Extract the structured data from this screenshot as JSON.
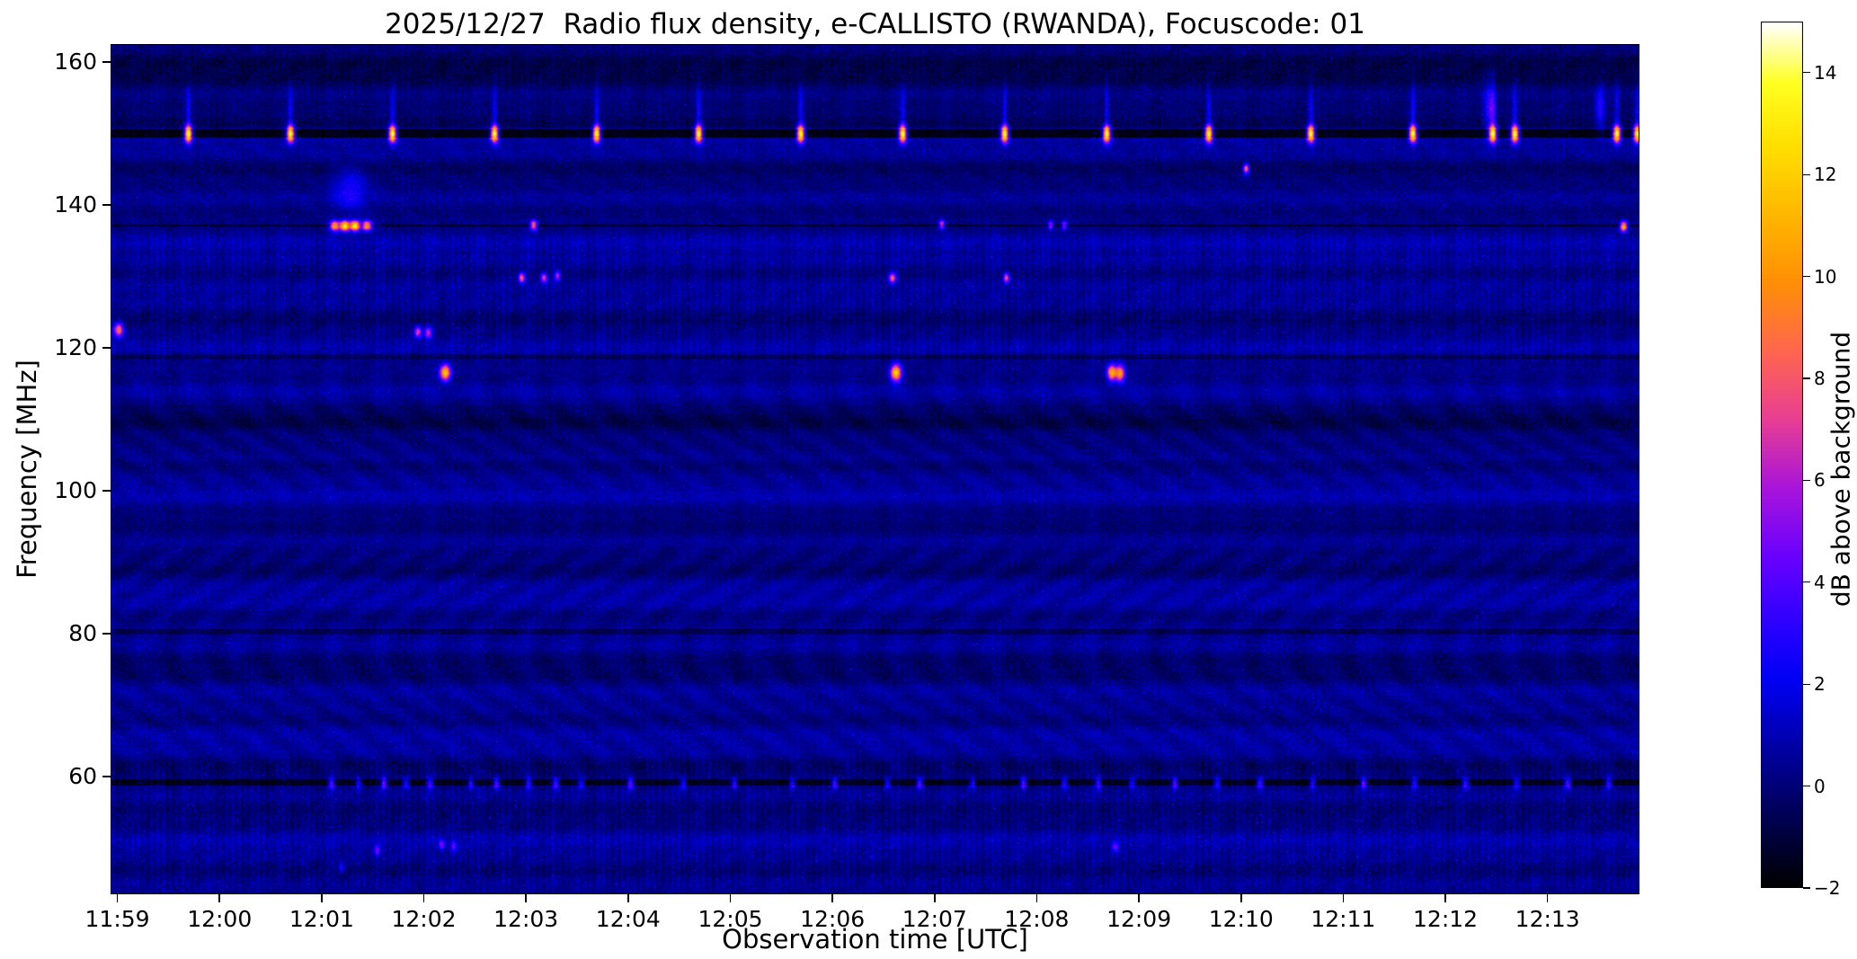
{
  "chart_data": {
    "type": "heatmap",
    "subtype": "radio-spectrogram",
    "title": "2025/12/27  Radio flux density, e-CALLISTO (RWANDA), Focuscode: 01",
    "xlabel": "Observation time [UTC]",
    "ylabel": "Frequency [MHz]",
    "time": {
      "tick_labels": [
        "11:59",
        "12:00",
        "12:01",
        "12:02",
        "12:03",
        "12:04",
        "12:05",
        "12:06",
        "12:07",
        "12:08",
        "12:09",
        "12:10",
        "12:11",
        "12:12",
        "12:13"
      ],
      "first_tick_offset_s": 4,
      "tick_step_s": 60,
      "duration_s": 898
    },
    "freq": {
      "min": 43.5,
      "max": 162.5,
      "tick_values": [
        160,
        140,
        120,
        100,
        80,
        60
      ]
    },
    "colorbar": {
      "label": "dB above background",
      "min": -2,
      "max": 15,
      "tick_values": [
        14,
        12,
        10,
        8,
        6,
        4,
        2,
        0,
        -2
      ],
      "tick_labels": [
        "14",
        "12",
        "10",
        "8",
        "6",
        "4",
        "2",
        "0",
        "−2"
      ]
    },
    "colormap_stops": [
      {
        "t": 0.0,
        "c": "#000000"
      },
      {
        "t": 0.08,
        "c": "#000052"
      },
      {
        "t": 0.16,
        "c": "#0000a3"
      },
      {
        "t": 0.24,
        "c": "#0000f5"
      },
      {
        "t": 0.3,
        "c": "#2800ff"
      },
      {
        "t": 0.38,
        "c": "#6800ff"
      },
      {
        "t": 0.46,
        "c": "#a714db"
      },
      {
        "t": 0.54,
        "c": "#e73d94"
      },
      {
        "t": 0.62,
        "c": "#ff664d"
      },
      {
        "t": 0.7,
        "c": "#ff8f05"
      },
      {
        "t": 0.78,
        "c": "#ffb800"
      },
      {
        "t": 0.86,
        "c": "#ffe000"
      },
      {
        "t": 0.93,
        "c": "#ffff20"
      },
      {
        "t": 1.0,
        "c": "#ffffff"
      }
    ],
    "dark_channels": [
      {
        "f": 150.1,
        "hw": 0.55,
        "dv": -2.3
      },
      {
        "f": 137.2,
        "hw": 0.25,
        "dv": -1.2
      },
      {
        "f": 118.8,
        "hw": 0.3,
        "dv": -0.9
      },
      {
        "f": 80.2,
        "hw": 0.35,
        "dv": -0.9
      },
      {
        "f": 59.1,
        "hw": 0.45,
        "dv": -1.6
      }
    ],
    "pulses_150mhz": {
      "freq_mhz": 150.1,
      "amp_db": 15,
      "sigma_t_s": 1.6,
      "sigma_f_mhz": 0.8,
      "times_s": [
        41,
        101,
        161,
        221,
        281,
        341,
        401,
        461,
        521,
        581,
        641,
        701,
        761,
        808,
        821,
        881,
        893
      ],
      "plume": {
        "freq_mhz": 153.5,
        "amp_db": 2.4,
        "sigma_t_s": 1.1,
        "sigma_f_mhz": 2.4
      }
    },
    "dots_59mhz": {
      "freq_mhz": 59.0,
      "sigma_t_s": 1.3,
      "sigma_f_mhz": 0.55,
      "times_s": [
        125,
        141,
        156,
        169,
        183,
        207,
        222,
        241,
        257,
        272,
        301,
        332,
        362,
        396,
        421,
        452,
        471,
        502,
        532,
        556,
        576,
        596,
        621,
        646,
        671,
        702,
        732,
        762,
        792,
        822,
        852,
        876
      ],
      "amps_db": [
        5.5,
        4.0,
        6.0,
        4.5,
        5.0,
        4.2,
        5.8,
        4.4
      ]
    },
    "features_format": [
      "t_s",
      "freq_mhz",
      "amp_db",
      "sigma_t_s",
      "sigma_f_mhz"
    ],
    "features": [
      [
        127,
        137.2,
        11,
        2.0,
        0.5
      ],
      [
        133,
        137.2,
        14,
        2.0,
        0.5
      ],
      [
        139,
        137.2,
        14,
        2.0,
        0.5
      ],
      [
        146,
        137.2,
        11,
        2.0,
        0.5
      ],
      [
        136,
        142.3,
        2.6,
        7.0,
        2.0
      ],
      [
        244,
        137.3,
        9,
        1.5,
        0.5
      ],
      [
        484,
        137.4,
        7,
        1.2,
        0.45
      ],
      [
        548,
        137.3,
        6,
        1.2,
        0.45
      ],
      [
        556,
        137.3,
        6,
        1.2,
        0.45
      ],
      [
        885,
        137.1,
        12,
        1.5,
        0.5
      ],
      [
        237,
        129.9,
        8,
        1.4,
        0.5
      ],
      [
        250,
        129.9,
        7,
        1.4,
        0.5
      ],
      [
        258,
        130.2,
        6,
        1.2,
        0.5
      ],
      [
        455,
        129.9,
        8,
        1.5,
        0.5
      ],
      [
        522,
        129.9,
        8,
        1.3,
        0.5
      ],
      [
        0,
        122.6,
        9,
        2.0,
        0.7
      ],
      [
        176,
        122.3,
        7,
        1.5,
        0.6
      ],
      [
        182,
        122.2,
        6,
        1.5,
        0.6
      ],
      [
        192,
        116.6,
        12,
        2.2,
        0.8
      ],
      [
        457,
        116.6,
        12,
        2.2,
        0.8
      ],
      [
        584,
        116.6,
        11,
        2.0,
        0.8
      ],
      [
        589,
        116.5,
        10,
        1.8,
        0.8
      ],
      [
        663,
        145.2,
        9,
        1.2,
        0.5
      ],
      [
        806,
        153.8,
        3.5,
        2.5,
        2.4
      ],
      [
        871,
        153.8,
        3.0,
        2.0,
        2.4
      ],
      [
        152,
        49.6,
        4,
        1.3,
        0.5
      ],
      [
        190,
        50.4,
        4.5,
        1.3,
        0.5
      ],
      [
        197,
        50.2,
        3.5,
        1.2,
        0.5
      ],
      [
        586,
        50.1,
        4,
        1.3,
        0.5
      ],
      [
        131,
        47.2,
        3,
        1.2,
        0.5
      ]
    ]
  }
}
